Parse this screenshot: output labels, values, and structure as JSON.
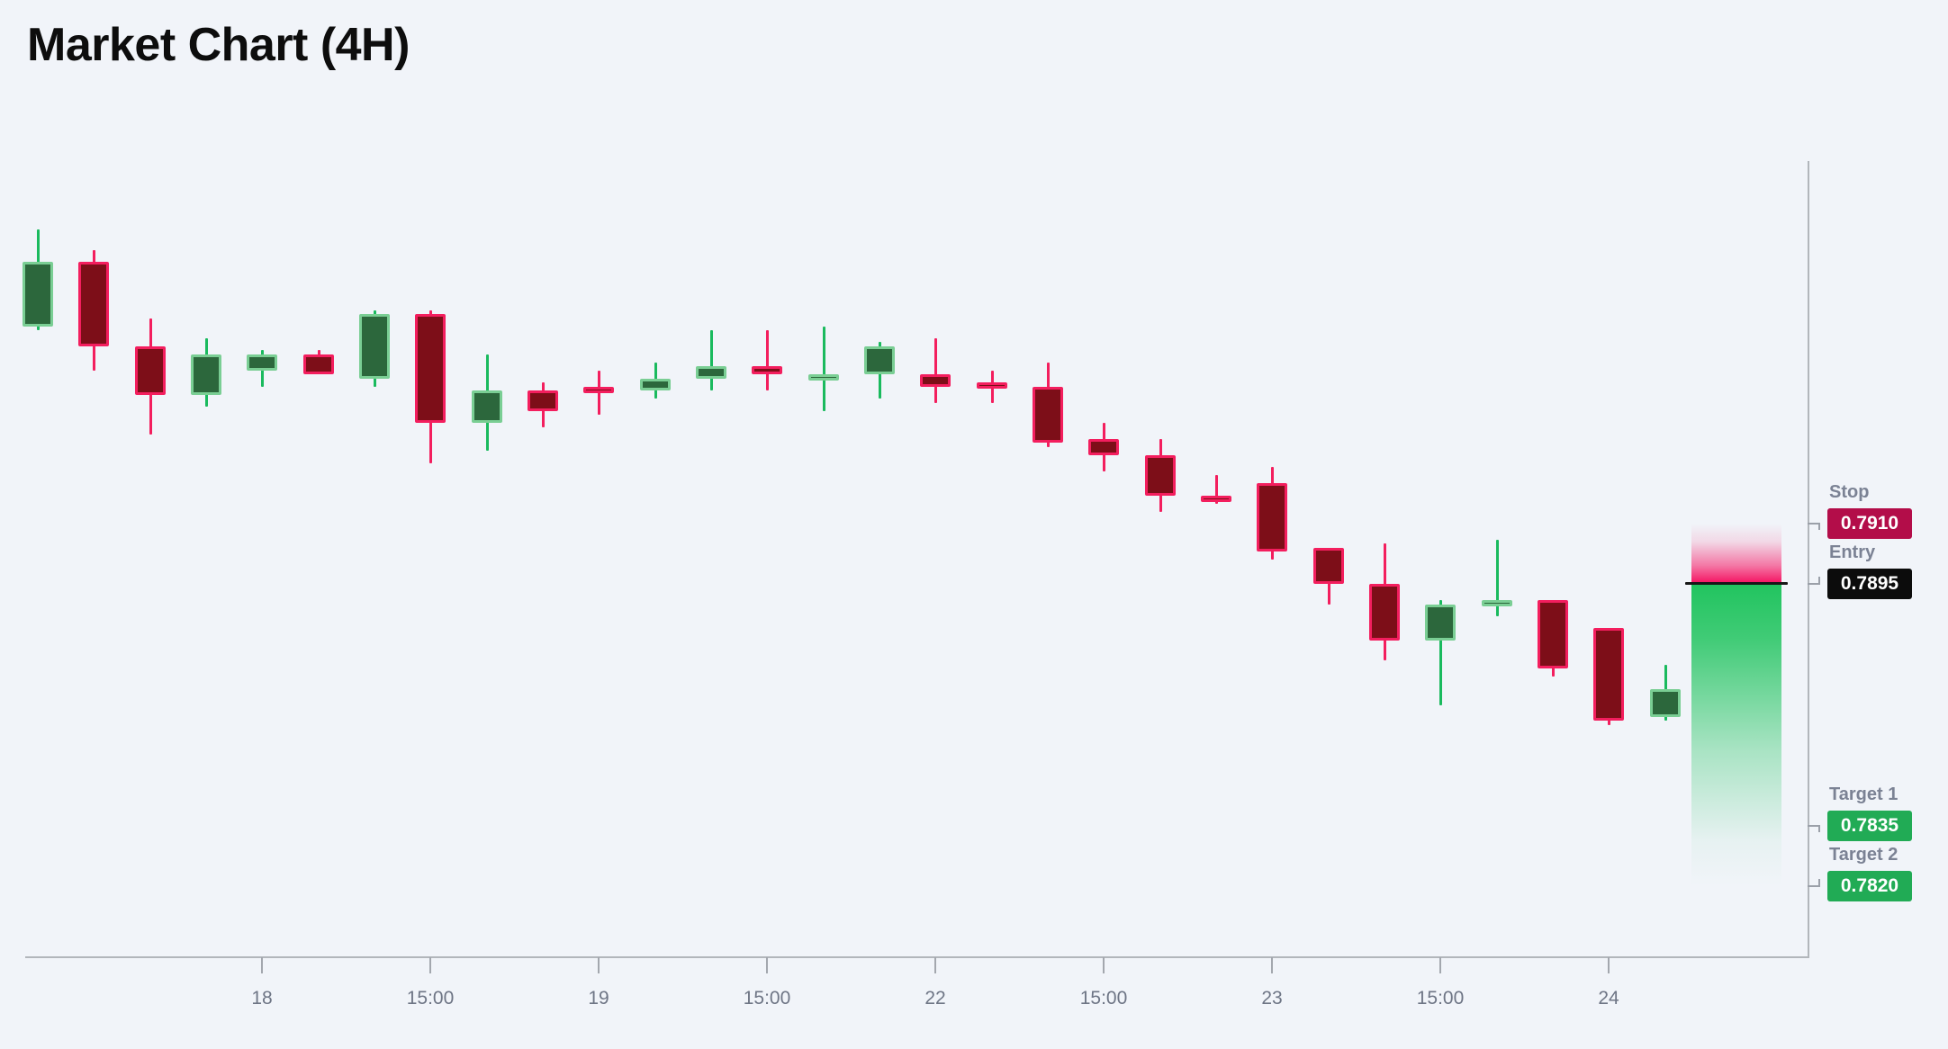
{
  "title": "Market Chart (4H)",
  "colors": {
    "background": "#f1f4f9",
    "axis": "#b2b6bb",
    "tick": "#a3a7ae",
    "tick_label_text": "#6e7585",
    "level_name_text": "#7b8294",
    "bull_fill": "#2c673c",
    "bull_border": "#7ace94",
    "bull_wick": "#1aba5e",
    "bear_fill": "#7d0e18",
    "bear_border": "#f31e5e",
    "bear_wick": "#f31e5e",
    "stop_badge": "#b30d49",
    "entry_badge": "#0c0c0c",
    "target_badge": "#21ab55",
    "zone_pink": "#f50f5f",
    "zone_green": "#21c45f",
    "entry_line": "#171717"
  },
  "levels": [
    {
      "key": "stop",
      "label": "Stop",
      "value": "0.7910",
      "price": 0.791,
      "badge": "stop_badge",
      "stub": "down"
    },
    {
      "key": "entry",
      "label": "Entry",
      "value": "0.7895",
      "price": 0.7895,
      "badge": "entry_badge",
      "stub": "up"
    },
    {
      "key": "target1",
      "label": "Target 1",
      "value": "0.7835",
      "price": 0.7835,
      "badge": "target_badge",
      "stub": "down"
    },
    {
      "key": "target2",
      "label": "Target 2",
      "value": "0.7820",
      "price": 0.782,
      "badge": "target_badge",
      "stub": "up"
    }
  ],
  "chart_data": {
    "type": "candlestick",
    "title": "Market Chart (4H)",
    "interval": "4H",
    "grid": false,
    "y_axis_visible_range": [
      0.7852,
      0.7992
    ],
    "x_axis": {
      "ticks": [
        {
          "candle_index": 4,
          "label": "18"
        },
        {
          "candle_index": 7,
          "label": "15:00"
        },
        {
          "candle_index": 10,
          "label": "19"
        },
        {
          "candle_index": 13,
          "label": "15:00"
        },
        {
          "candle_index": 16,
          "label": "22"
        },
        {
          "candle_index": 19,
          "label": "15:00"
        },
        {
          "candle_index": 22,
          "label": "23"
        },
        {
          "candle_index": 25,
          "label": "15:00"
        },
        {
          "candle_index": 28,
          "label": "24"
        }
      ]
    },
    "trade_levels": {
      "stop": 0.791,
      "entry": 0.7895,
      "target1": 0.7835,
      "target2": 0.782
    },
    "risk_zone": {
      "from": "stop",
      "to": "entry",
      "color": "zone_pink"
    },
    "reward_zone": {
      "from": "entry",
      "to": "target2",
      "color": "zone_green"
    },
    "candles": [
      {
        "o": 0.7959,
        "h": 0.7983,
        "l": 0.7958,
        "c": 0.7975,
        "dir": "bull"
      },
      {
        "o": 0.7975,
        "h": 0.7978,
        "l": 0.7948,
        "c": 0.7954,
        "dir": "bear"
      },
      {
        "o": 0.7954,
        "h": 0.7961,
        "l": 0.7932,
        "c": 0.7942,
        "dir": "bear"
      },
      {
        "o": 0.7942,
        "h": 0.7956,
        "l": 0.7939,
        "c": 0.7952,
        "dir": "bull"
      },
      {
        "o": 0.7948,
        "h": 0.7953,
        "l": 0.7944,
        "c": 0.7952,
        "dir": "bull"
      },
      {
        "o": 0.7952,
        "h": 0.7953,
        "l": 0.7947,
        "c": 0.7947,
        "dir": "bear"
      },
      {
        "o": 0.7946,
        "h": 0.7963,
        "l": 0.7944,
        "c": 0.7962,
        "dir": "bull"
      },
      {
        "o": 0.7962,
        "h": 0.7963,
        "l": 0.7925,
        "c": 0.7935,
        "dir": "bear"
      },
      {
        "o": 0.7935,
        "h": 0.7952,
        "l": 0.7928,
        "c": 0.7943,
        "dir": "bull"
      },
      {
        "o": 0.7943,
        "h": 0.7945,
        "l": 0.7934,
        "c": 0.7938,
        "dir": "bear"
      },
      {
        "o": 0.7944,
        "h": 0.7948,
        "l": 0.7937,
        "c": 0.7943,
        "dir": "bear"
      },
      {
        "o": 0.7943,
        "h": 0.795,
        "l": 0.7941,
        "c": 0.7946,
        "dir": "bull"
      },
      {
        "o": 0.7946,
        "h": 0.7958,
        "l": 0.7943,
        "c": 0.7949,
        "dir": "bull"
      },
      {
        "o": 0.7949,
        "h": 0.7958,
        "l": 0.7943,
        "c": 0.7947,
        "dir": "bear"
      },
      {
        "o": 0.7946,
        "h": 0.7959,
        "l": 0.7938,
        "c": 0.7947,
        "dir": "bull"
      },
      {
        "o": 0.7947,
        "h": 0.7955,
        "l": 0.7941,
        "c": 0.7954,
        "dir": "bull"
      },
      {
        "o": 0.7947,
        "h": 0.7956,
        "l": 0.794,
        "c": 0.7944,
        "dir": "bear"
      },
      {
        "o": 0.7945,
        "h": 0.7948,
        "l": 0.794,
        "c": 0.7944,
        "dir": "bear"
      },
      {
        "o": 0.7944,
        "h": 0.795,
        "l": 0.7929,
        "c": 0.793,
        "dir": "bear"
      },
      {
        "o": 0.7931,
        "h": 0.7935,
        "l": 0.7923,
        "c": 0.7927,
        "dir": "bear"
      },
      {
        "o": 0.7927,
        "h": 0.7931,
        "l": 0.7913,
        "c": 0.7917,
        "dir": "bear"
      },
      {
        "o": 0.7917,
        "h": 0.7922,
        "l": 0.7915,
        "c": 0.7916,
        "dir": "bear"
      },
      {
        "o": 0.792,
        "h": 0.7924,
        "l": 0.7901,
        "c": 0.7903,
        "dir": "bear"
      },
      {
        "o": 0.7904,
        "h": 0.7904,
        "l": 0.789,
        "c": 0.7895,
        "dir": "bear"
      },
      {
        "o": 0.7895,
        "h": 0.7905,
        "l": 0.7876,
        "c": 0.7881,
        "dir": "bear"
      },
      {
        "o": 0.7881,
        "h": 0.7891,
        "l": 0.7865,
        "c": 0.789,
        "dir": "bull"
      },
      {
        "o": 0.789,
        "h": 0.7906,
        "l": 0.7887,
        "c": 0.7891,
        "dir": "bull"
      },
      {
        "o": 0.7891,
        "h": 0.7891,
        "l": 0.7872,
        "c": 0.7874,
        "dir": "bear"
      },
      {
        "o": 0.7884,
        "h": 0.7884,
        "l": 0.786,
        "c": 0.7861,
        "dir": "bear"
      },
      {
        "o": 0.7862,
        "h": 0.7875,
        "l": 0.7861,
        "c": 0.7869,
        "dir": "bull"
      }
    ]
  }
}
